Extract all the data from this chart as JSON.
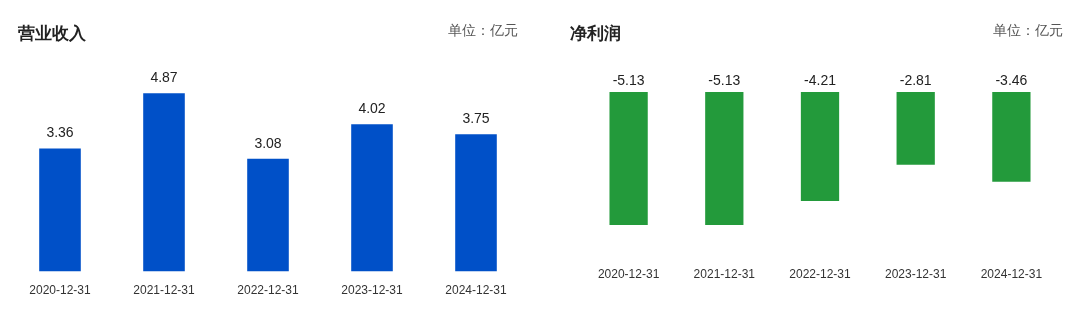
{
  "chart_data": [
    {
      "type": "bar",
      "title": "营业收入",
      "annotations": [
        "单位：亿元"
      ],
      "categories": [
        "2020-12-31",
        "2021-12-31",
        "2022-12-31",
        "2023-12-31",
        "2024-12-31"
      ],
      "values": [
        3.36,
        4.87,
        3.08,
        4.02,
        3.75
      ],
      "color": "#0050c8",
      "data_labels": true,
      "tick_labels": "x"
    },
    {
      "type": "bar",
      "title": "净利润",
      "annotations": [
        "单位：亿元"
      ],
      "categories": [
        "2020-12-31",
        "2021-12-31",
        "2022-12-31",
        "2023-12-31",
        "2024-12-31"
      ],
      "values": [
        -5.13,
        -5.13,
        -4.21,
        -2.81,
        -3.46
      ],
      "color": "#239a3b",
      "data_labels": true,
      "tick_labels": "x"
    }
  ]
}
